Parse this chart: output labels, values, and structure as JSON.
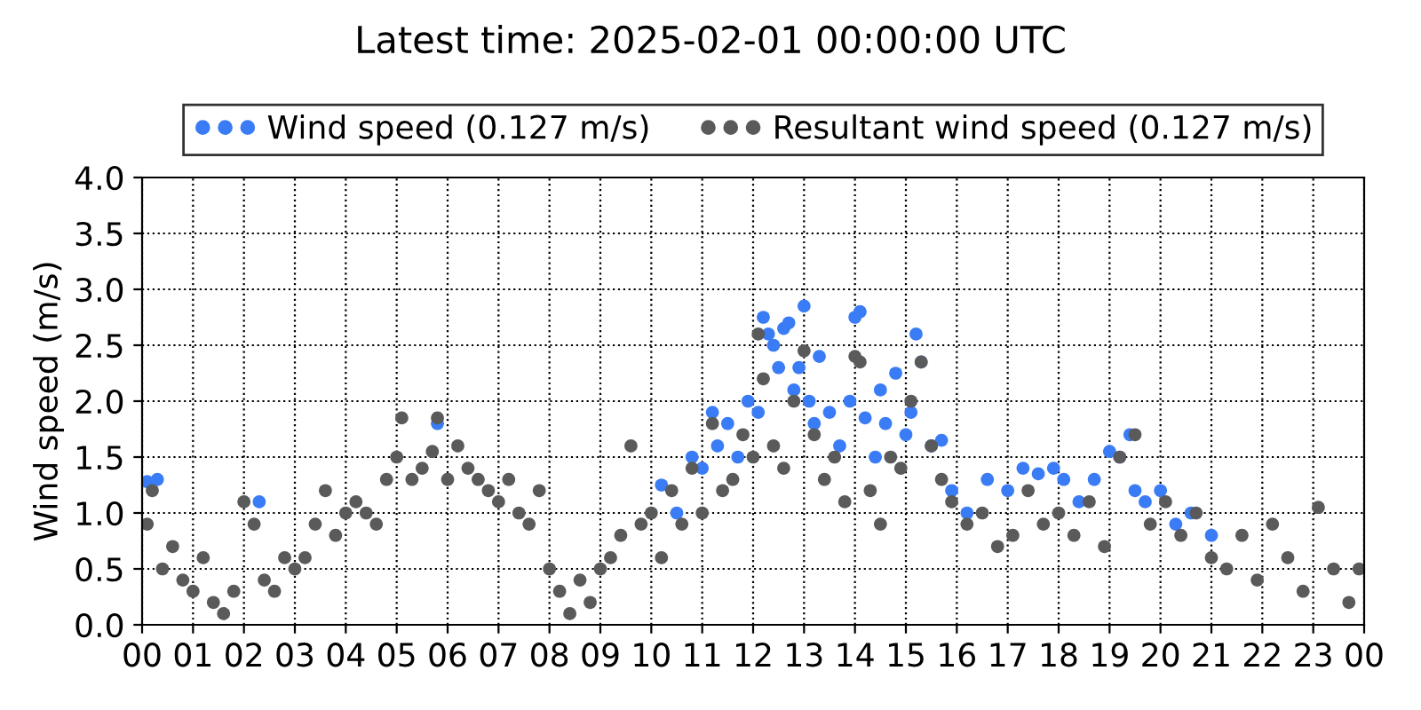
{
  "chart_data": {
    "type": "scatter",
    "title": "Latest time: 2025-02-01 00:00:00 UTC",
    "ylabel": "Wind speed (m/s)",
    "xlim": [
      0,
      24
    ],
    "xticks": [
      {
        "value": 0,
        "label": "00"
      },
      {
        "value": 1,
        "label": "01"
      },
      {
        "value": 2,
        "label": "02"
      },
      {
        "value": 3,
        "label": "03"
      },
      {
        "value": 4,
        "label": "04"
      },
      {
        "value": 5,
        "label": "05"
      },
      {
        "value": 6,
        "label": "06"
      },
      {
        "value": 7,
        "label": "07"
      },
      {
        "value": 8,
        "label": "08"
      },
      {
        "value": 9,
        "label": "09"
      },
      {
        "value": 10,
        "label": "10"
      },
      {
        "value": 11,
        "label": "11"
      },
      {
        "value": 12,
        "label": "12"
      },
      {
        "value": 13,
        "label": "13"
      },
      {
        "value": 14,
        "label": "14"
      },
      {
        "value": 15,
        "label": "15"
      },
      {
        "value": 16,
        "label": "16"
      },
      {
        "value": 17,
        "label": "17"
      },
      {
        "value": 18,
        "label": "18"
      },
      {
        "value": 19,
        "label": "19"
      },
      {
        "value": 20,
        "label": "20"
      },
      {
        "value": 21,
        "label": "21"
      },
      {
        "value": 22,
        "label": "22"
      },
      {
        "value": 23,
        "label": "23"
      },
      {
        "value": 24,
        "label": "00"
      }
    ],
    "ylim": [
      0,
      4
    ],
    "yticks": [
      {
        "value": 0,
        "label": "0.0"
      },
      {
        "value": 0.5,
        "label": "0.5"
      },
      {
        "value": 1,
        "label": "1.0"
      },
      {
        "value": 1.5,
        "label": "1.5"
      },
      {
        "value": 2,
        "label": "2.0"
      },
      {
        "value": 2.5,
        "label": "2.5"
      },
      {
        "value": 3,
        "label": "3.0"
      },
      {
        "value": 3.5,
        "label": "3.5"
      },
      {
        "value": 4,
        "label": "4.0"
      }
    ],
    "grid": true,
    "legend": "top",
    "marker": "circle",
    "series": [
      {
        "name": "Wind speed (0.127 m/s)",
        "color": "#3a7cf5",
        "x": [
          0.1,
          0.3,
          2.3,
          5.8,
          10.2,
          10.5,
          10.8,
          11.0,
          11.2,
          11.3,
          11.5,
          11.7,
          11.9,
          12.1,
          12.2,
          12.3,
          12.4,
          12.5,
          12.6,
          12.7,
          12.8,
          12.9,
          13.0,
          13.1,
          13.2,
          13.3,
          13.5,
          13.7,
          13.9,
          14.0,
          14.1,
          14.2,
          14.4,
          14.5,
          14.6,
          14.8,
          15.0,
          15.1,
          15.2,
          15.3,
          15.5,
          15.7,
          15.9,
          16.2,
          16.6,
          17.0,
          17.3,
          17.6,
          17.9,
          18.1,
          18.4,
          18.7,
          19.0,
          19.2,
          19.4,
          19.5,
          19.7,
          20.0,
          20.3,
          20.6,
          21.0
        ],
        "values": [
          1.28,
          1.3,
          1.1,
          1.8,
          1.25,
          1.0,
          1.5,
          1.4,
          1.9,
          1.6,
          1.8,
          1.5,
          2.0,
          1.9,
          2.75,
          2.6,
          2.5,
          2.3,
          2.65,
          2.7,
          2.1,
          2.3,
          2.85,
          2.0,
          1.8,
          2.4,
          1.9,
          1.6,
          2.0,
          2.75,
          2.8,
          1.85,
          1.5,
          2.1,
          1.8,
          2.25,
          1.7,
          1.9,
          2.6,
          2.35,
          1.6,
          1.65,
          1.2,
          1.0,
          1.3,
          1.2,
          1.4,
          1.35,
          1.4,
          1.3,
          1.1,
          1.3,
          1.55,
          1.5,
          1.7,
          1.2,
          1.1,
          1.2,
          0.9,
          1.0,
          0.8
        ]
      },
      {
        "name": "Resultant wind speed (0.127 m/s)",
        "color": "#5a5a5a",
        "x": [
          0.1,
          0.2,
          0.4,
          0.6,
          0.8,
          1.0,
          1.2,
          1.4,
          1.6,
          1.8,
          2.0,
          2.2,
          2.4,
          2.6,
          2.8,
          3.0,
          3.2,
          3.4,
          3.6,
          3.8,
          4.0,
          4.2,
          4.4,
          4.6,
          4.8,
          5.0,
          5.1,
          5.3,
          5.5,
          5.7,
          5.8,
          6.0,
          6.2,
          6.4,
          6.6,
          6.8,
          7.0,
          7.2,
          7.4,
          7.6,
          7.8,
          8.0,
          8.2,
          8.4,
          8.6,
          8.8,
          9.0,
          9.2,
          9.4,
          9.6,
          9.8,
          10.0,
          10.2,
          10.4,
          10.6,
          10.8,
          11.0,
          11.2,
          11.4,
          11.6,
          11.8,
          12.0,
          12.1,
          12.2,
          12.4,
          12.6,
          12.8,
          13.0,
          13.2,
          13.4,
          13.6,
          13.8,
          14.0,
          14.1,
          14.3,
          14.5,
          14.7,
          14.9,
          15.1,
          15.3,
          15.5,
          15.7,
          15.9,
          16.2,
          16.5,
          16.8,
          17.1,
          17.4,
          17.7,
          18.0,
          18.3,
          18.6,
          18.9,
          19.2,
          19.5,
          19.8,
          20.1,
          20.4,
          20.7,
          21.0,
          21.3,
          21.6,
          21.9,
          22.2,
          22.5,
          22.8,
          23.1,
          23.4,
          23.7,
          23.9
        ],
        "values": [
          0.9,
          1.2,
          0.5,
          0.7,
          0.4,
          0.3,
          0.6,
          0.2,
          0.1,
          0.3,
          1.1,
          0.9,
          0.4,
          0.3,
          0.6,
          0.5,
          0.6,
          0.9,
          1.2,
          0.8,
          1.0,
          1.1,
          1.0,
          0.9,
          1.3,
          1.5,
          1.85,
          1.3,
          1.4,
          1.55,
          1.85,
          1.3,
          1.6,
          1.4,
          1.3,
          1.2,
          1.1,
          1.3,
          1.0,
          0.9,
          1.2,
          0.5,
          0.3,
          0.1,
          0.4,
          0.2,
          0.5,
          0.6,
          0.8,
          1.6,
          0.9,
          1.0,
          0.6,
          1.2,
          0.9,
          1.4,
          1.0,
          1.8,
          1.2,
          1.3,
          1.7,
          1.5,
          2.6,
          2.2,
          1.6,
          1.4,
          2.0,
          2.45,
          1.7,
          1.3,
          1.5,
          1.1,
          2.4,
          2.35,
          1.2,
          0.9,
          1.5,
          1.4,
          2.0,
          2.35,
          1.6,
          1.3,
          1.1,
          0.9,
          1.0,
          0.7,
          0.8,
          1.2,
          0.9,
          1.0,
          0.8,
          1.1,
          0.7,
          1.5,
          1.7,
          0.9,
          1.1,
          0.8,
          1.0,
          0.6,
          0.5,
          0.8,
          0.4,
          0.9,
          0.6,
          0.3,
          1.05,
          0.5,
          0.2,
          0.5
        ]
      }
    ]
  }
}
